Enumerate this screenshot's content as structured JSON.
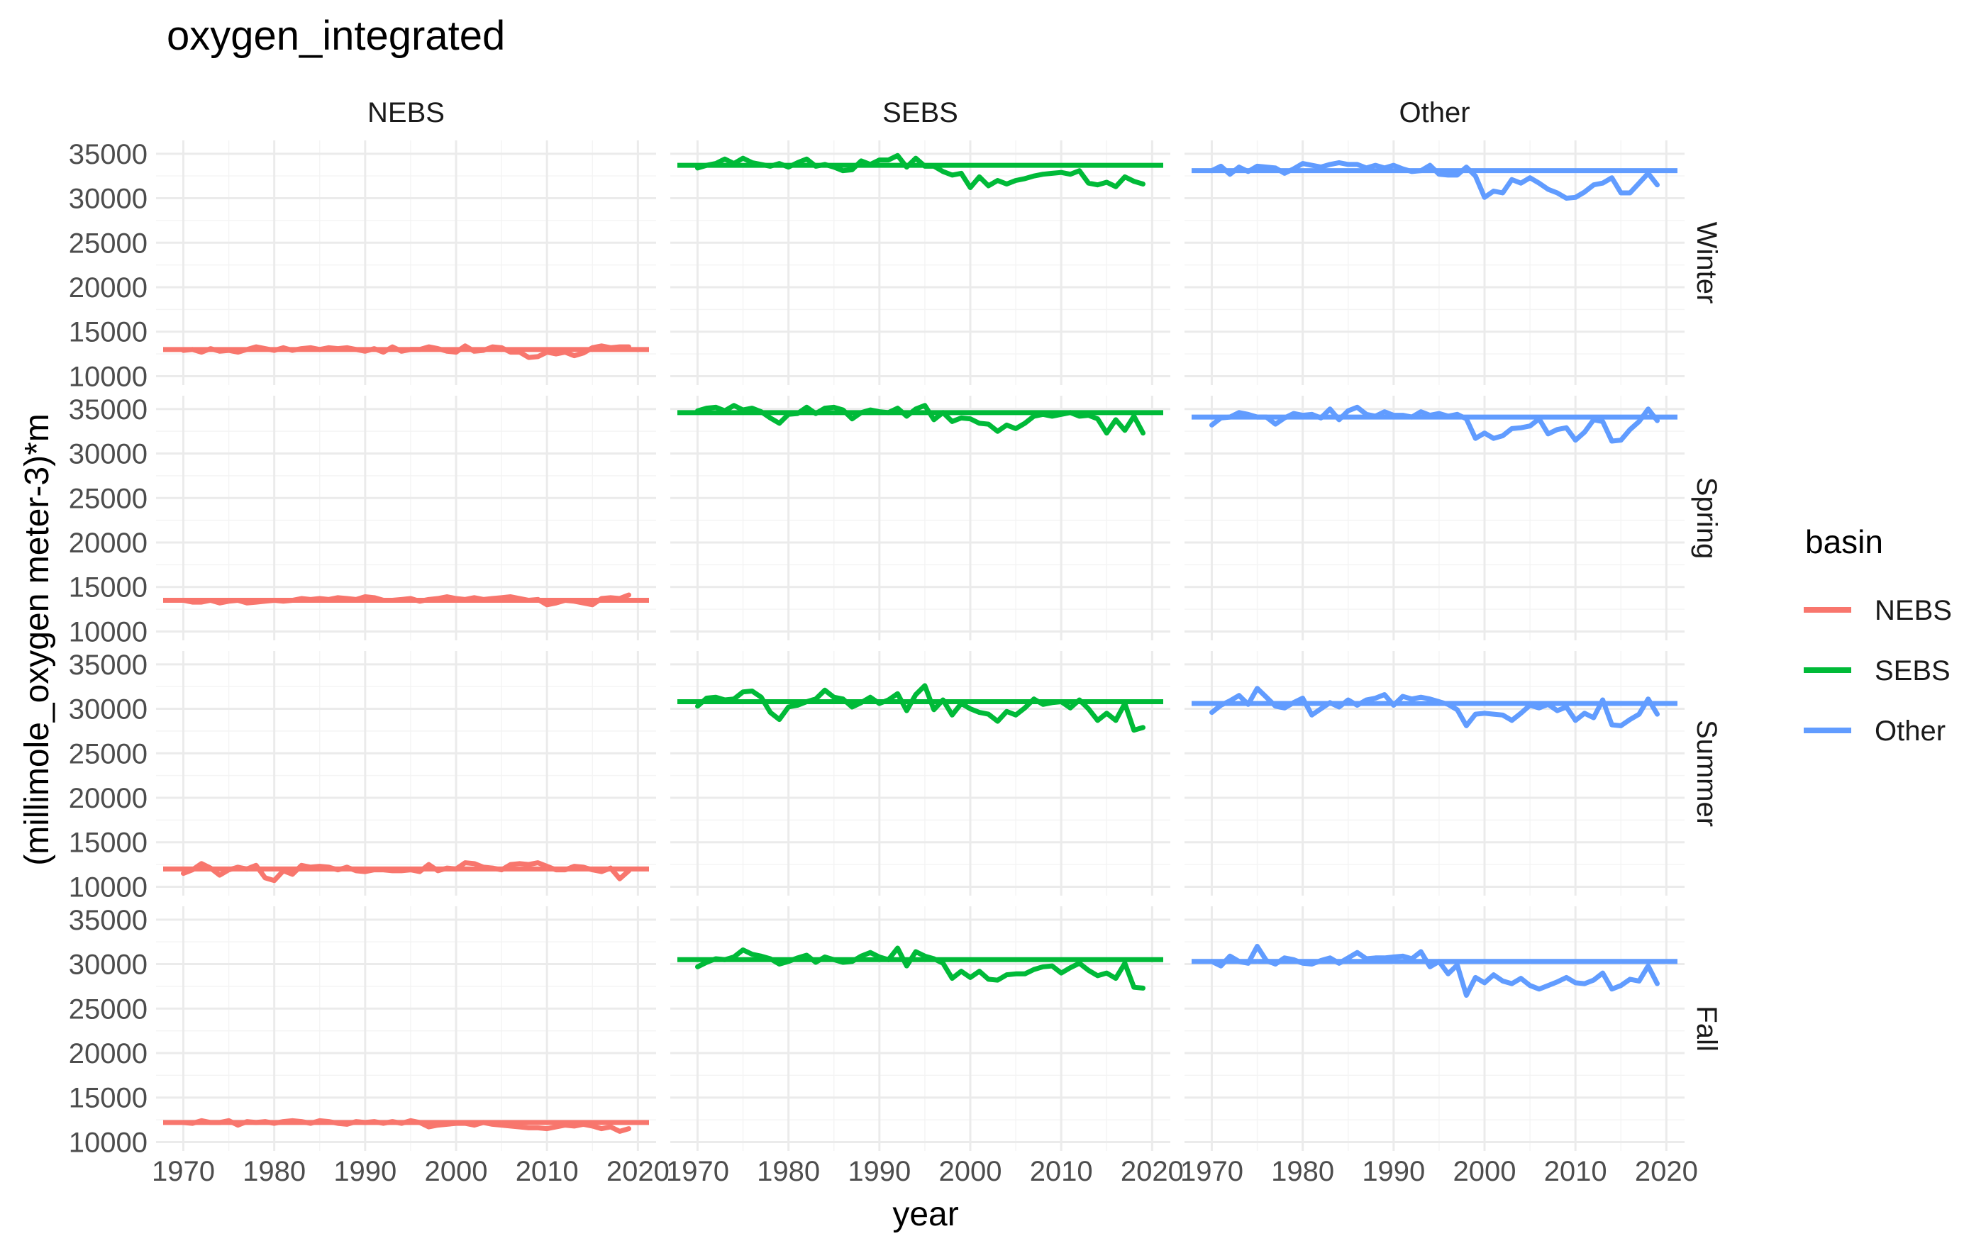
{
  "chart_data": {
    "type": "line",
    "title": "oxygen_integrated",
    "xlabel": "year",
    "ylabel": "(millimole_oxygen meter-3)*m",
    "xlim": [
      1967,
      2022
    ],
    "ylim": [
      9000,
      36500
    ],
    "x_ticks": [
      1970,
      1980,
      1990,
      2000,
      2010,
      2020
    ],
    "y_ticks": [
      10000,
      15000,
      20000,
      25000,
      30000,
      35000
    ],
    "columns": [
      "NEBS",
      "SEBS",
      "Other"
    ],
    "rows": [
      "Winter",
      "Spring",
      "Summer",
      "Fall"
    ],
    "grid": true,
    "legend": {
      "title": "basin",
      "position": "right",
      "entries": [
        {
          "label": "NEBS",
          "color": "#F8766D"
        },
        {
          "label": "SEBS",
          "color": "#00BA38"
        },
        {
          "label": "Other",
          "color": "#619CFF"
        }
      ]
    },
    "start_year": 1970,
    "panels": [
      {
        "basin": "NEBS",
        "season": "Winter",
        "mean": 13000,
        "values": [
          12900,
          13000,
          12700,
          13100,
          12800,
          12900,
          12700,
          13000,
          13300,
          13100,
          12900,
          13200,
          12900,
          13100,
          13200,
          13000,
          13200,
          13100,
          13200,
          13000,
          12800,
          13100,
          12700,
          13300,
          12800,
          13000,
          13000,
          13300,
          13100,
          12800,
          12700,
          13400,
          12800,
          12900,
          13300,
          13200,
          12700,
          12700,
          12100,
          12200,
          12700,
          12500,
          12700,
          12300,
          12600,
          13200,
          13400,
          13200,
          13300,
          13300
        ]
      },
      {
        "basin": "SEBS",
        "season": "Winter",
        "mean": 33700,
        "values": [
          33400,
          33700,
          33900,
          34400,
          33900,
          34500,
          34000,
          33800,
          33600,
          33900,
          33500,
          34000,
          34400,
          33600,
          33800,
          33500,
          33100,
          33200,
          34200,
          33800,
          34300,
          34300,
          34800,
          33500,
          34500,
          33600,
          33600,
          33000,
          32600,
          32800,
          31200,
          32400,
          31400,
          32000,
          31600,
          32000,
          32200,
          32500,
          32700,
          32800,
          32900,
          32700,
          33100,
          31700,
          31500,
          31800,
          31300,
          32400,
          31900,
          31600
        ]
      },
      {
        "basin": "Other",
        "season": "Winter",
        "mean": 33100,
        "values": [
          33100,
          33600,
          32700,
          33500,
          33000,
          33600,
          33500,
          33400,
          32800,
          33300,
          33900,
          33700,
          33500,
          33800,
          34000,
          33800,
          33800,
          33400,
          33700,
          33400,
          33700,
          33300,
          33000,
          33100,
          33700,
          32700,
          32600,
          32600,
          33500,
          32500,
          30100,
          30800,
          30600,
          32100,
          31700,
          32300,
          31700,
          31000,
          30600,
          30000,
          30100,
          30700,
          31500,
          31700,
          32300,
          30600,
          30600,
          31700,
          32800,
          31500
        ]
      },
      {
        "basin": "NEBS",
        "season": "Spring",
        "mean": 13500,
        "values": [
          13500,
          13300,
          13300,
          13500,
          13200,
          13400,
          13500,
          13200,
          13300,
          13400,
          13500,
          13400,
          13500,
          13700,
          13600,
          13700,
          13600,
          13800,
          13700,
          13600,
          13900,
          13800,
          13500,
          13500,
          13600,
          13700,
          13400,
          13600,
          13700,
          13900,
          13700,
          13600,
          13800,
          13600,
          13700,
          13800,
          13900,
          13700,
          13500,
          13600,
          13000,
          13200,
          13500,
          13400,
          13200,
          13000,
          13700,
          13800,
          13700,
          14100
        ]
      },
      {
        "basin": "SEBS",
        "season": "Spring",
        "mean": 34600,
        "values": [
          34800,
          35100,
          35200,
          34800,
          35400,
          34900,
          35100,
          34700,
          34000,
          33400,
          34400,
          34500,
          35200,
          34500,
          35100,
          35200,
          34900,
          33900,
          34600,
          34900,
          34700,
          34600,
          35100,
          34200,
          35000,
          35400,
          33800,
          34600,
          33600,
          34000,
          33900,
          33400,
          33300,
          32500,
          33200,
          32800,
          33400,
          34200,
          34400,
          34200,
          34400,
          34600,
          34200,
          34300,
          33900,
          32300,
          33800,
          32600,
          34200,
          32300
        ]
      },
      {
        "basin": "Other",
        "season": "Spring",
        "mean": 34100,
        "values": [
          33200,
          34000,
          34100,
          34600,
          34400,
          34100,
          34100,
          33300,
          34000,
          34500,
          34300,
          34400,
          34000,
          35000,
          33800,
          34800,
          35200,
          34400,
          34200,
          34700,
          34300,
          34300,
          34100,
          34700,
          34300,
          34500,
          34200,
          34400,
          33900,
          31700,
          32300,
          31700,
          32000,
          32800,
          32900,
          33100,
          33900,
          32200,
          32700,
          32900,
          31500,
          32400,
          33800,
          33600,
          31400,
          31500,
          32700,
          33600,
          35000,
          33700
        ]
      },
      {
        "basin": "NEBS",
        "season": "Summer",
        "mean": 12000,
        "values": [
          11500,
          11900,
          12600,
          12100,
          11300,
          11900,
          12200,
          12000,
          12400,
          11000,
          10700,
          11800,
          11400,
          12400,
          12200,
          12300,
          12200,
          11900,
          12200,
          11800,
          11700,
          11900,
          11900,
          11800,
          11800,
          11900,
          11700,
          12500,
          11800,
          12100,
          12000,
          12700,
          12600,
          12200,
          12100,
          11900,
          12500,
          12600,
          12500,
          12700,
          12300,
          11900,
          11900,
          12300,
          12200,
          11900,
          11700,
          12100,
          10900,
          11800
        ]
      },
      {
        "basin": "SEBS",
        "season": "Summer",
        "mean": 30800,
        "values": [
          30300,
          31200,
          31300,
          31000,
          31100,
          31900,
          32000,
          31300,
          29600,
          28800,
          30200,
          30400,
          30800,
          31100,
          32100,
          31300,
          31100,
          30200,
          30700,
          31300,
          30600,
          31000,
          31700,
          29800,
          31600,
          32600,
          29900,
          31000,
          29300,
          30600,
          30000,
          29600,
          29400,
          28600,
          29700,
          29300,
          30100,
          31100,
          30500,
          30700,
          30800,
          30100,
          31000,
          30000,
          28700,
          29500,
          28700,
          30600,
          27600,
          27900
        ]
      },
      {
        "basin": "Other",
        "season": "Summer",
        "mean": 30600,
        "values": [
          29600,
          30400,
          30900,
          31500,
          30500,
          32300,
          31300,
          30300,
          30100,
          30700,
          31200,
          29300,
          30000,
          30700,
          30200,
          31000,
          30400,
          31000,
          31200,
          31600,
          30400,
          31400,
          31100,
          31300,
          31100,
          30800,
          30500,
          29900,
          28100,
          29400,
          29500,
          29400,
          29300,
          28700,
          29500,
          30400,
          30100,
          30500,
          29800,
          30200,
          28700,
          29500,
          29000,
          31000,
          28200,
          28100,
          28800,
          29400,
          31100,
          29400
        ]
      },
      {
        "basin": "NEBS",
        "season": "Fall",
        "mean": 12200,
        "values": [
          12200,
          12100,
          12400,
          12200,
          12200,
          12400,
          11900,
          12300,
          12200,
          12300,
          12100,
          12300,
          12400,
          12300,
          12100,
          12400,
          12300,
          12100,
          12000,
          12300,
          12200,
          12300,
          12100,
          12300,
          12100,
          12400,
          12200,
          11700,
          11900,
          12000,
          12100,
          12100,
          11900,
          12200,
          12000,
          11900,
          11800,
          11700,
          11600,
          11600,
          11500,
          11700,
          11900,
          11800,
          12000,
          11800,
          11500,
          11700,
          11200,
          11500
        ]
      },
      {
        "basin": "SEBS",
        "season": "Fall",
        "mean": 30500,
        "values": [
          29700,
          30200,
          30600,
          30500,
          30800,
          31600,
          31100,
          30900,
          30600,
          30000,
          30300,
          30700,
          31000,
          30200,
          30800,
          30500,
          30200,
          30300,
          30900,
          31300,
          30800,
          30500,
          31800,
          29800,
          31400,
          30900,
          30600,
          30100,
          28400,
          29200,
          28500,
          29200,
          28300,
          28200,
          28800,
          28900,
          28900,
          29400,
          29700,
          29800,
          29000,
          29600,
          30100,
          29300,
          28700,
          29000,
          28400,
          30100,
          27400,
          27300
        ]
      },
      {
        "basin": "Other",
        "season": "Fall",
        "mean": 30300,
        "values": [
          30300,
          29800,
          30900,
          30300,
          30100,
          32000,
          30400,
          30000,
          30700,
          30500,
          30100,
          30000,
          30400,
          30700,
          30100,
          30700,
          31300,
          30600,
          30700,
          30700,
          30800,
          30900,
          30600,
          31400,
          29700,
          30300,
          28900,
          29900,
          26500,
          28500,
          27900,
          28800,
          28100,
          27800,
          28400,
          27600,
          27200,
          27600,
          28000,
          28500,
          27900,
          27800,
          28200,
          29000,
          27200,
          27600,
          28300,
          28100,
          29800,
          27800
        ]
      }
    ]
  }
}
